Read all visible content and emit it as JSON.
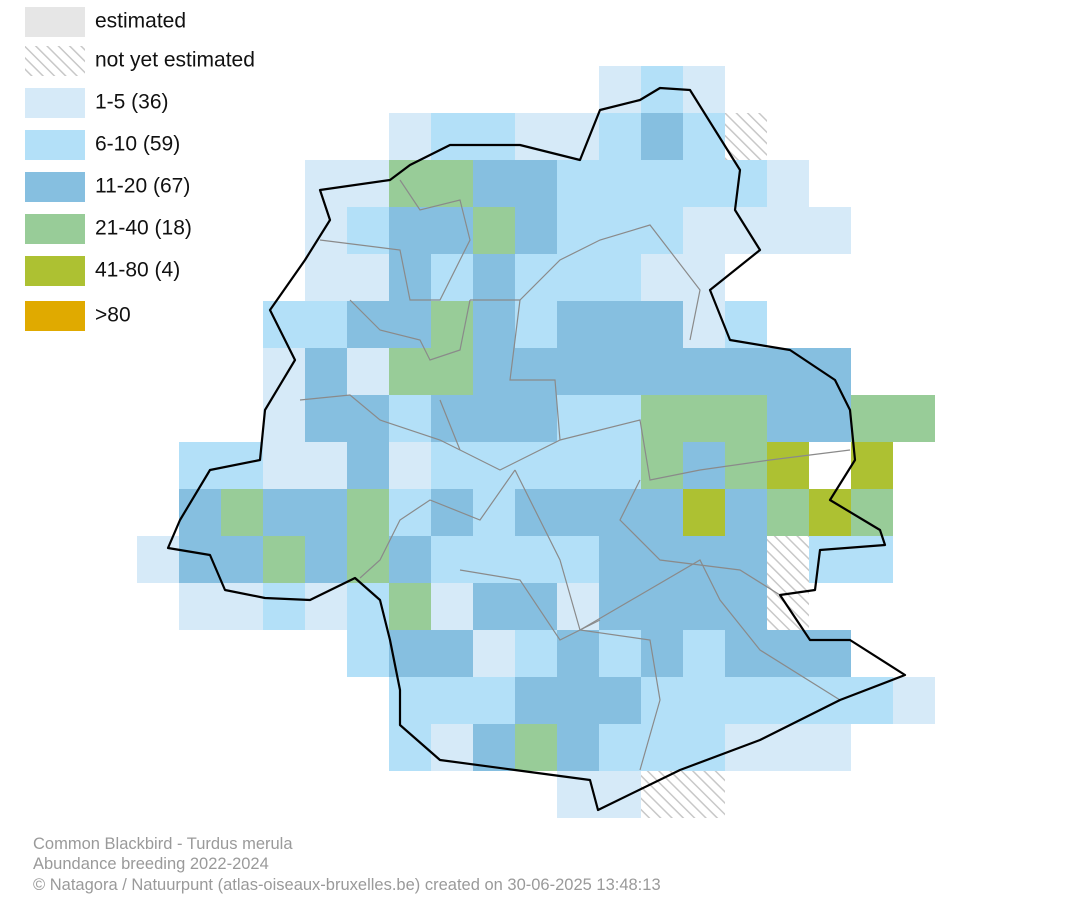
{
  "legend": {
    "items": [
      "estimated",
      "not yet estimated",
      "1-5 (36)",
      "6-10 (59)",
      "11-20 (67)",
      "21-40 (18)",
      "41-80 (4)",
      ">80"
    ]
  },
  "footer": {
    "species": "Common Blackbird - Turdus merula",
    "subtitle": "Abundance breeding 2022-2024",
    "credit": "© Natagora / Natuurpunt (atlas-oiseaux-bruxelles.be) created on 30-06-2025 13:48:13"
  }
}
